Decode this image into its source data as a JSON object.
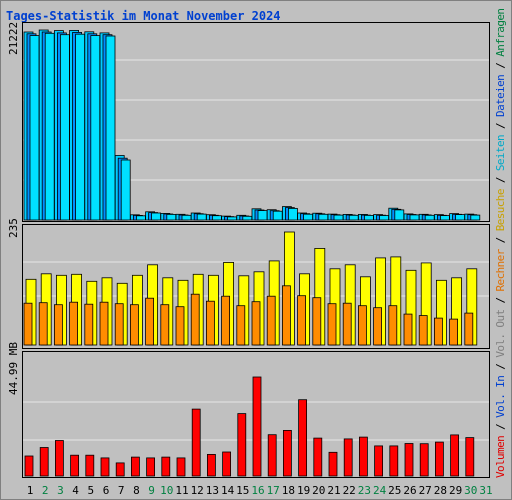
{
  "colors": {
    "background": "#c0c0c0",
    "panel_border": "#000000",
    "grid": "#e6e6e6",
    "title_blue": "#0040d0",
    "weekend_green": "#008040",
    "weekday_black": "#000000",
    "anfragen_bar": "#00ccff",
    "dateien_bar": "#0090ff",
    "seiten_bar": "#00e0ff",
    "besuche_bar": "#ffff00",
    "rechner_bar": "#ff8c00",
    "volumen_bar": "#ff0000",
    "label_anfragen": "#008040",
    "label_dateien": "#0040d0",
    "label_seiten": "#00a8c8",
    "label_besuche": "#c8a000",
    "label_rechner": "#e07000",
    "label_out": "#808080",
    "label_in": "#0040d0",
    "label_volumen": "#e00000",
    "label_sep": "#000000"
  },
  "chart_data": {
    "title": "Tages-Statistik im Monat November 2024",
    "type": "bar",
    "categories": [
      "1",
      "2",
      "3",
      "4",
      "5",
      "6",
      "7",
      "8",
      "9",
      "10",
      "11",
      "12",
      "13",
      "14",
      "15",
      "16",
      "17",
      "18",
      "19",
      "20",
      "21",
      "22",
      "23",
      "24",
      "25",
      "26",
      "27",
      "28",
      "29",
      "30",
      "31"
    ],
    "weekend_days": [
      "2",
      "3",
      "9",
      "10",
      "16",
      "17",
      "23",
      "24",
      "30",
      "31"
    ],
    "panels": [
      {
        "name": "requests",
        "ymax_label": "21222",
        "ylim": [
          0,
          21222
        ],
        "series": [
          {
            "name": "Anfragen",
            "values": [
              21000,
              21222,
              21150,
              21180,
              21020,
              20900,
              7200,
              580,
              920,
              740,
              640,
              780,
              590,
              440,
              520,
              1250,
              1150,
              1500,
              780,
              760,
              660,
              630,
              620,
              600,
              1320,
              680,
              640,
              600,
              720,
              660,
              0
            ]
          },
          {
            "name": "Dateien",
            "values": [
              20800,
              21000,
              20900,
              20950,
              20800,
              20700,
              6900,
              510,
              830,
              670,
              560,
              700,
              520,
              380,
              450,
              1120,
              1040,
              1380,
              700,
              690,
              590,
              560,
              550,
              540,
              1200,
              610,
              570,
              530,
              640,
              590,
              0
            ]
          },
          {
            "name": "Seiten",
            "values": [
              20600,
              20850,
              20700,
              20750,
              20600,
              20550,
              6700,
              470,
              780,
              620,
              520,
              660,
              480,
              350,
              410,
              1050,
              980,
              1300,
              650,
              640,
              550,
              520,
              510,
              500,
              1130,
              570,
              530,
              490,
              600,
              550,
              0
            ]
          }
        ]
      },
      {
        "name": "visits",
        "ymax_label": "235",
        "ylim": [
          0,
          235
        ],
        "series": [
          {
            "name": "Besuche",
            "values": [
              132,
              143,
              140,
              142,
              128,
              135,
              124,
              140,
              161,
              135,
              130,
              142,
              140,
              166,
              139,
              147,
              169,
              227,
              143,
              194,
              153,
              161,
              137,
              175,
              177,
              150,
              165,
              130,
              135,
              153,
              0
            ]
          },
          {
            "name": "Rechner",
            "values": [
              84,
              85,
              81,
              86,
              82,
              86,
              83,
              81,
              94,
              81,
              77,
              102,
              88,
              98,
              79,
              87,
              98,
              119,
              99,
              95,
              83,
              84,
              79,
              75,
              79,
              62,
              59,
              54,
              52,
              64,
              0
            ]
          }
        ]
      },
      {
        "name": "volume",
        "ymax_label": "44.99 MB",
        "ylim": [
          0,
          44.99
        ],
        "series": [
          {
            "name": "Volumen",
            "values": [
              7.5,
              10.7,
              13.3,
              7.8,
              7.8,
              6.8,
              4.9,
              7.1,
              6.8,
              7.1,
              6.8,
              25.1,
              8.1,
              9.0,
              23.4,
              37.1,
              15.5,
              17.1,
              28.6,
              14.2,
              8.9,
              13.9,
              14.6,
              11.3,
              11.3,
              12.2,
              12.1,
              12.7,
              15.4,
              14.4,
              0
            ]
          }
        ]
      }
    ],
    "side_labels": [
      "Anfragen",
      "Dateien",
      "Seiten",
      "Besuche",
      "Rechner",
      "Vol. Out",
      "Vol. In",
      "Volumen"
    ],
    "side_separator": "/"
  }
}
